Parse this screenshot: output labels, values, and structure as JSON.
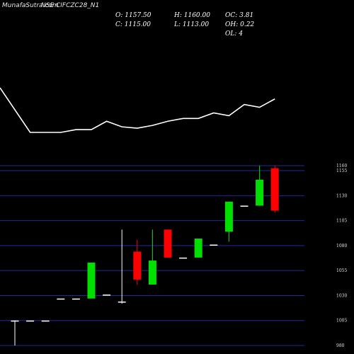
{
  "header": {
    "watermark": "MunafaSutra.com",
    "symbol_title": "NSE CIFCZC28_N1"
  },
  "ohlc": {
    "open": "O: 1157.50",
    "high": "H: 1160.00",
    "close": "C: 1115.00",
    "low": "L: 1113.00",
    "oc": "OC: 3.81",
    "oh": "OH: 0.22",
    "ol": "OL: 4"
  },
  "chart_data": {
    "type": "candlestick",
    "y_ticks": [
      1160,
      1155,
      1130,
      1105,
      1080,
      1055,
      1030,
      1005,
      980
    ],
    "ylim": [
      980,
      1165
    ],
    "colors": {
      "up": "#00e000",
      "down": "#ff0000",
      "flat": "#ffffff",
      "line": "#ffffff",
      "grid": "#1f2a9a"
    },
    "candles": [
      {
        "open": 1005,
        "high": 1005,
        "low": 980,
        "close": 1005,
        "color": "flat"
      },
      {
        "open": 1005,
        "high": 1005,
        "low": 1005,
        "close": 1005,
        "color": "flat"
      },
      {
        "open": 1005,
        "high": 1005,
        "low": 1005,
        "close": 1005,
        "color": "flat"
      },
      {
        "open": 1027,
        "high": 1027,
        "low": 1027,
        "close": 1027,
        "color": "flat"
      },
      {
        "open": 1027,
        "high": 1027,
        "low": 1027,
        "close": 1027,
        "color": "flat"
      },
      {
        "open": 1027,
        "high": 1063,
        "low": 1027,
        "close": 1063,
        "color": "up"
      },
      {
        "open": 1031,
        "high": 1031,
        "low": 1031,
        "close": 1031,
        "color": "flat"
      },
      {
        "open": 1024,
        "high": 1096,
        "low": 1022,
        "close": 1024,
        "color": "flat"
      },
      {
        "open": 1074,
        "high": 1086,
        "low": 1041,
        "close": 1046,
        "color": "down"
      },
      {
        "open": 1041,
        "high": 1096,
        "low": 1041,
        "close": 1065,
        "color": "up"
      },
      {
        "open": 1096,
        "high": 1096,
        "low": 1068,
        "close": 1068,
        "color": "down"
      },
      {
        "open": 1068,
        "high": 1068,
        "low": 1068,
        "close": 1068,
        "color": "flat"
      },
      {
        "open": 1068,
        "high": 1087,
        "low": 1068,
        "close": 1087,
        "color": "up"
      },
      {
        "open": 1081,
        "high": 1081,
        "low": 1081,
        "close": 1081,
        "color": "flat"
      },
      {
        "open": 1094,
        "high": 1124,
        "low": 1084,
        "close": 1124,
        "color": "up"
      },
      {
        "open": 1120,
        "high": 1120,
        "low": 1120,
        "close": 1120,
        "color": "flat"
      },
      {
        "open": 1120,
        "high": 1160,
        "low": 1120,
        "close": 1146,
        "color": "up"
      },
      {
        "open": 1157.5,
        "high": 1160,
        "low": 1113,
        "close": 1115,
        "color": "down"
      }
    ],
    "line_overlay": [
      1144,
      1112,
      1112,
      1112,
      1114,
      1114,
      1120,
      1116,
      1115,
      1117,
      1120,
      1122,
      1122,
      1126,
      1124,
      1132,
      1130,
      1136
    ]
  }
}
